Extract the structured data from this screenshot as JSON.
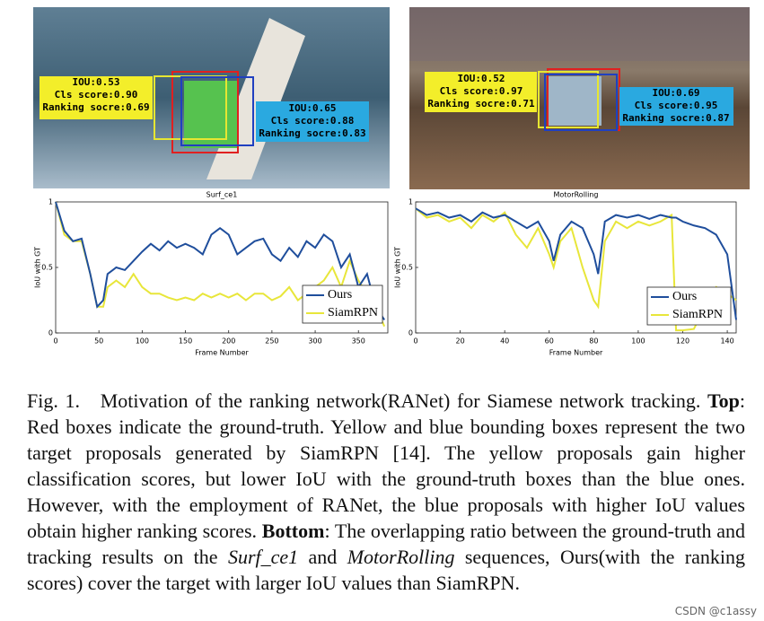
{
  "images": [
    {
      "yellow_box": [
        "IOU:0.53",
        "Cls score:0.90",
        "Ranking socre:0.69"
      ],
      "blue_box": [
        "IOU:0.65",
        "Cls score:0.88",
        "Ranking socre:0.83"
      ]
    },
    {
      "yellow_box": [
        "IOU:0.52",
        "Cls score:0.97",
        "Ranking socre:0.71"
      ],
      "blue_box": [
        "IOU:0.69",
        "Cls score:0.95",
        "Ranking socre:0.87"
      ]
    }
  ],
  "chart_data": [
    {
      "type": "line",
      "title": "Surf_ce1",
      "x_label": "Frame Number",
      "y_label": "IoU with GT",
      "x": [
        0,
        10,
        20,
        30,
        40,
        48,
        55,
        60,
        70,
        80,
        90,
        100,
        110,
        120,
        130,
        140,
        150,
        160,
        170,
        180,
        190,
        200,
        210,
        220,
        230,
        240,
        250,
        260,
        270,
        280,
        290,
        300,
        310,
        320,
        330,
        340,
        350,
        360,
        370,
        380
      ],
      "series": [
        {
          "name": "Ours",
          "color": "#1f4e9c",
          "values": [
            1,
            0.78,
            0.7,
            0.72,
            0.45,
            0.2,
            0.25,
            0.45,
            0.5,
            0.48,
            0.55,
            0.62,
            0.68,
            0.63,
            0.7,
            0.65,
            0.68,
            0.65,
            0.6,
            0.75,
            0.8,
            0.75,
            0.6,
            0.65,
            0.7,
            0.72,
            0.6,
            0.55,
            0.65,
            0.58,
            0.7,
            0.65,
            0.75,
            0.7,
            0.5,
            0.6,
            0.35,
            0.45,
            0.2,
            0.1
          ]
        },
        {
          "name": "SiamRPN",
          "color": "#e8e63a",
          "values": [
            1,
            0.75,
            0.7,
            0.7,
            0.45,
            0.2,
            0.2,
            0.35,
            0.4,
            0.35,
            0.45,
            0.35,
            0.3,
            0.3,
            0.27,
            0.25,
            0.27,
            0.25,
            0.3,
            0.27,
            0.3,
            0.27,
            0.3,
            0.25,
            0.3,
            0.3,
            0.25,
            0.28,
            0.35,
            0.25,
            0.3,
            0.35,
            0.4,
            0.5,
            0.35,
            0.55,
            0.4,
            0.3,
            0.2,
            0.05
          ]
        }
      ],
      "xlim": [
        0,
        384
      ],
      "xticks": [
        0,
        50,
        100,
        150,
        200,
        250,
        300,
        350
      ],
      "ylim": [
        0,
        1
      ],
      "yticks": [
        0,
        0.5,
        1
      ],
      "legend": "lower right"
    },
    {
      "type": "line",
      "title": "MotorRolling",
      "x_label": "Frame Number",
      "y_label": "IoU with GT",
      "x": [
        0,
        5,
        10,
        15,
        20,
        25,
        30,
        35,
        40,
        45,
        50,
        55,
        60,
        62,
        65,
        70,
        75,
        80,
        82,
        85,
        90,
        95,
        100,
        105,
        110,
        115,
        117,
        120,
        125,
        130,
        135,
        140,
        144
      ],
      "series": [
        {
          "name": "Ours",
          "color": "#1f4e9c",
          "values": [
            0.95,
            0.9,
            0.92,
            0.88,
            0.9,
            0.85,
            0.92,
            0.88,
            0.9,
            0.85,
            0.8,
            0.85,
            0.7,
            0.55,
            0.75,
            0.85,
            0.8,
            0.6,
            0.45,
            0.85,
            0.9,
            0.88,
            0.9,
            0.87,
            0.9,
            0.88,
            0.88,
            0.85,
            0.82,
            0.8,
            0.75,
            0.6,
            0.1
          ]
        },
        {
          "name": "SiamRPN",
          "color": "#e8e63a",
          "values": [
            0.95,
            0.88,
            0.9,
            0.85,
            0.88,
            0.8,
            0.9,
            0.85,
            0.92,
            0.75,
            0.65,
            0.8,
            0.6,
            0.5,
            0.7,
            0.8,
            0.5,
            0.25,
            0.2,
            0.7,
            0.85,
            0.8,
            0.85,
            0.82,
            0.85,
            0.9,
            0.02,
            0.02,
            0.03,
            0.2,
            0.35,
            0.3,
            0.25
          ]
        }
      ],
      "xlim": [
        0,
        144
      ],
      "xticks": [
        0,
        20,
        40,
        60,
        80,
        100,
        120,
        140
      ],
      "ylim": [
        0,
        1
      ],
      "yticks": [
        0,
        0.5,
        1
      ],
      "legend": "lower right"
    }
  ],
  "caption": {
    "label": "Fig. 1.",
    "intro": "Motivation of the ranking network(RANet) for Siamese network tracking.",
    "top_head": "Top",
    "top_text": ": Red boxes indicate the ground-truth. Yellow and blue bounding boxes represent the two target proposals generated by SiamRPN [14]. The yellow proposals gain higher classification scores, but lower IoU with the ground-truth boxes than the blue ones. However, with the employment of RANet, the blue proposals with higher IoU values obtain higher ranking scores.",
    "bottom_head": "Bottom",
    "bottom_text_1": ": The overlapping ratio between the ground-truth and tracking results on the",
    "seq_1": "Surf_ce1",
    "and": "and",
    "seq_2": "MotorRolling",
    "bottom_text_2": "sequences, Ours(with the ranking scores) cover the target with larger IoU values than SiamRPN."
  },
  "watermark": "CSDN @c1assy"
}
